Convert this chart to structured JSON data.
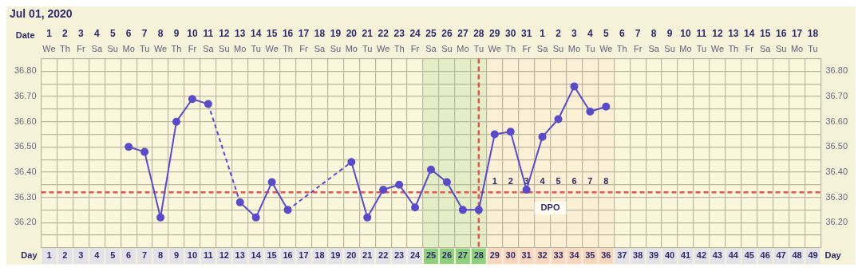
{
  "chart_data": {
    "type": "line",
    "title": "Jul 01, 2020",
    "xlabel": "Day",
    "x2label": "Date",
    "xlim": [
      0.5,
      49.5
    ],
    "xticks": [
      1,
      2,
      3,
      4,
      5,
      6,
      7,
      8,
      9,
      10,
      11,
      12,
      13,
      14,
      15,
      16,
      17,
      18,
      19,
      20,
      21,
      22,
      23,
      24,
      25,
      26,
      27,
      28,
      29,
      30,
      31,
      32,
      33,
      34,
      35,
      36,
      37,
      38,
      39,
      40,
      41,
      42,
      43,
      44,
      45,
      46,
      47,
      48,
      49
    ],
    "x2lim": [
      "2020-06-30T12:00",
      "2020-08-18T12:00"
    ],
    "x2ticks": [
      {
        "value": "2020-07-01",
        "label": "1\nWe"
      },
      {
        "value": "2020-07-02",
        "label": "2\nTh"
      },
      {
        "value": "2020-07-03",
        "label": "3\nFr"
      },
      {
        "value": "2020-07-04",
        "label": "4\nSa"
      },
      {
        "value": "2020-07-05",
        "label": "5\nSu"
      },
      {
        "value": "2020-07-06",
        "label": "6\nMo"
      },
      {
        "value": "2020-07-07",
        "label": "7\nTu"
      },
      {
        "value": "2020-07-08",
        "label": "8\nWe"
      },
      {
        "value": "2020-07-09",
        "label": "9\nTh"
      },
      {
        "value": "2020-07-10",
        "label": "10\nFr"
      },
      {
        "value": "2020-07-11",
        "label": "11\nSa"
      },
      {
        "value": "2020-07-12",
        "label": "12\nSu"
      },
      {
        "value": "2020-07-13",
        "label": "13\nMo"
      },
      {
        "value": "2020-07-14",
        "label": "14\nTu"
      },
      {
        "value": "2020-07-15",
        "label": "15\nWe"
      },
      {
        "value": "2020-07-16",
        "label": "16\nTh"
      },
      {
        "value": "2020-07-17",
        "label": "17\nFr"
      },
      {
        "value": "2020-07-18",
        "label": "18\nSa"
      },
      {
        "value": "2020-07-19",
        "label": "19\nSu"
      },
      {
        "value": "2020-07-20",
        "label": "20\nMo"
      },
      {
        "value": "2020-07-21",
        "label": "21\nTu"
      },
      {
        "value": "2020-07-22",
        "label": "22\nWe"
      },
      {
        "value": "2020-07-23",
        "label": "23\nTh"
      },
      {
        "value": "2020-07-24",
        "label": "24\nFr"
      },
      {
        "value": "2020-07-25",
        "label": "25\nSa"
      },
      {
        "value": "2020-07-26",
        "label": "26\nSu"
      },
      {
        "value": "2020-07-27",
        "label": "27\nMo"
      },
      {
        "value": "2020-07-28",
        "label": "28\nTu"
      },
      {
        "value": "2020-07-29",
        "label": "29\nWe"
      },
      {
        "value": "2020-07-30",
        "label": "30\nTh"
      },
      {
        "value": "2020-07-31",
        "label": "31\nFr"
      },
      {
        "value": "2020-08-01",
        "label": "1\nSa"
      },
      {
        "value": "2020-08-02",
        "label": "2\nSu"
      },
      {
        "value": "2020-08-03",
        "label": "3\nMo"
      },
      {
        "value": "2020-08-04",
        "label": "4\nTu"
      },
      {
        "value": "2020-08-05",
        "label": "5\nWe"
      },
      {
        "value": "2020-08-06",
        "label": "6\nTh"
      },
      {
        "value": "2020-08-07",
        "label": "7\nFr"
      },
      {
        "value": "2020-08-08",
        "label": "8\nSa"
      },
      {
        "value": "2020-08-09",
        "label": "9\nSu"
      },
      {
        "value": "2020-08-10",
        "label": "10\nMo"
      },
      {
        "value": "2020-08-11",
        "label": "11\nTu"
      },
      {
        "value": "2020-08-12",
        "label": "12\nWe"
      },
      {
        "value": "2020-08-13",
        "label": "13\nTh"
      },
      {
        "value": "2020-08-14",
        "label": "14\nFr"
      },
      {
        "value": "2020-08-15",
        "label": "15\nSa"
      },
      {
        "value": "2020-08-16",
        "label": "16\nSu"
      },
      {
        "value": "2020-08-17",
        "label": "17\nMo"
      },
      {
        "value": "2020-08-18",
        "label": "18\nTu"
      }
    ],
    "ylim": [
      36.1,
      36.85
    ],
    "yticks": [
      {
        "value": 36.1,
        "label": null
      },
      {
        "value": 36.15,
        "label": null
      },
      {
        "value": 36.2,
        "label": "36.20"
      },
      {
        "value": 36.25,
        "label": null
      },
      {
        "value": 36.3,
        "label": "36.30"
      },
      {
        "value": 36.35,
        "label": null
      },
      {
        "value": 36.4,
        "label": "36.40"
      },
      {
        "value": 36.45,
        "label": null
      },
      {
        "value": 36.5,
        "label": "36.50"
      },
      {
        "value": 36.55,
        "label": null
      },
      {
        "value": 36.6,
        "label": "36.60"
      },
      {
        "value": 36.65,
        "label": null
      },
      {
        "value": 36.7,
        "label": "36.70"
      },
      {
        "value": 36.75,
        "label": null
      },
      {
        "value": 36.8,
        "label": "36.80"
      },
      {
        "value": 36.85,
        "label": null
      }
    ],
    "y2lim": [
      36.1,
      36.85
    ],
    "y2ticks": [
      {
        "value": 36.1,
        "label": null
      },
      {
        "value": 36.15,
        "label": null
      },
      {
        "value": 36.2,
        "label": "36.20"
      },
      {
        "value": 36.25,
        "label": null
      },
      {
        "value": 36.3,
        "label": "36.30"
      },
      {
        "value": 36.35,
        "label": null
      },
      {
        "value": 36.4,
        "label": "36.40"
      },
      {
        "value": 36.45,
        "label": null
      },
      {
        "value": 36.5,
        "label": "36.50"
      },
      {
        "value": 36.55,
        "label": null
      },
      {
        "value": 36.6,
        "label": "36.60"
      },
      {
        "value": 36.65,
        "label": null
      },
      {
        "value": 36.7,
        "label": "36.70"
      },
      {
        "value": 36.75,
        "label": null
      },
      {
        "value": 36.8,
        "label": "36.80"
      },
      {
        "value": 36.85,
        "label": null
      }
    ],
    "series": [
      {
        "color": "#5a4bc8",
        "x": [
          6,
          7,
          8,
          9,
          10,
          11,
          13,
          14,
          15,
          16,
          20,
          21,
          22,
          23,
          24,
          25,
          26,
          27,
          28,
          29,
          30,
          31,
          32,
          33,
          34,
          35,
          36
        ],
        "values": [
          36.5,
          36.48,
          36.22,
          36.6,
          36.69,
          36.67,
          36.28,
          36.22,
          36.36,
          36.25,
          36.44,
          36.22,
          36.33,
          36.35,
          36.26,
          36.41,
          36.36,
          36.25,
          36.25,
          36.55,
          36.56,
          36.33,
          36.54,
          36.61,
          36.74,
          36.64,
          36.66
        ]
      }
    ],
    "ref_lines": [
      {
        "axis": "y",
        "value": 36.32,
        "color": "#e05555",
        "line_style": "dashed"
      },
      {
        "axis": "x",
        "value": 28,
        "color": "#e05555",
        "line_style": "dashed"
      }
    ],
    "bands": [
      {
        "axis": "x",
        "from": 24.5,
        "to": 28.5,
        "color": "#8fd07f"
      },
      {
        "axis": "x",
        "from": 28.5,
        "to": 36.5,
        "color": "#f9d6bd"
      }
    ],
    "annotations": [
      "1",
      "2",
      "3",
      "4",
      "5",
      "6",
      "7",
      "8",
      "DPO"
    ],
    "grid": true,
    "legend": false,
    "marker": "circle",
    "line_style": "solid"
  }
}
